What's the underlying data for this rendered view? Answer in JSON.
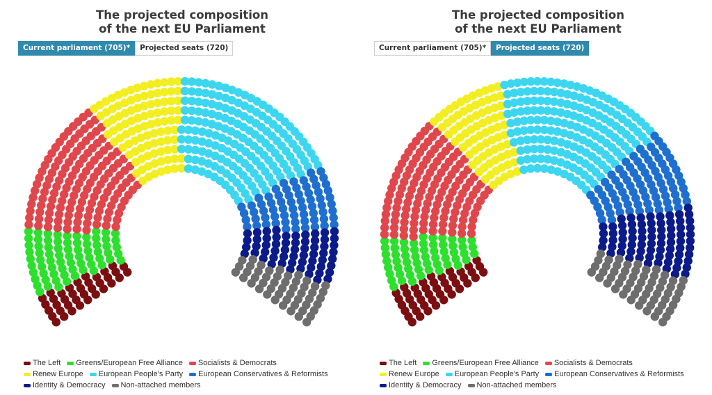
{
  "chart_data": [
    {
      "type": "parliament",
      "title_lines": [
        "The projected composition",
        "of the next EU Parliament"
      ],
      "tabs": [
        {
          "label": "Current parliament (705)*",
          "active": true
        },
        {
          "label": "Projected seats (720)",
          "active": false
        }
      ],
      "series": [
        {
          "name": "The Left",
          "seats": 37,
          "color": "#7b0e10"
        },
        {
          "name": "Greens/European Free Alliance",
          "seats": 71,
          "color": "#2ee02e"
        },
        {
          "name": "Socialists & Democrats",
          "seats": 143,
          "color": "#e0474c"
        },
        {
          "name": "Renew Europe",
          "seats": 101,
          "color": "#f2ee22"
        },
        {
          "name": "European People's Party",
          "seats": 177,
          "color": "#3cd6f0"
        },
        {
          "name": "European Conservatives & Reformists",
          "seats": 67,
          "color": "#1f6fd0"
        },
        {
          "name": "Identity & Democracy",
          "seats": 59,
          "color": "#0c1b8a"
        },
        {
          "name": "Non-attached members",
          "seats": 50,
          "color": "#6e6e6e"
        }
      ]
    },
    {
      "type": "parliament",
      "title_lines": [
        "The projected composition",
        "of the next EU Parliament"
      ],
      "tabs": [
        {
          "label": "Current parliament (705)*",
          "active": false
        },
        {
          "label": "Projected seats (720)",
          "active": true
        }
      ],
      "series": [
        {
          "name": "The Left",
          "seats": 44,
          "color": "#7b0e10"
        },
        {
          "name": "Greens/European Free Alliance",
          "seats": 57,
          "color": "#2ee02e"
        },
        {
          "name": "Socialists & Democrats",
          "seats": 135,
          "color": "#e0474c"
        },
        {
          "name": "Renew Europe",
          "seats": 82,
          "color": "#f2ee22"
        },
        {
          "name": "European People's Party",
          "seats": 183,
          "color": "#3cd6f0"
        },
        {
          "name": "European Conservatives & Reformists",
          "seats": 85,
          "color": "#1f6fd0"
        },
        {
          "name": "Identity & Democracy",
          "seats": 75,
          "color": "#0c1b8a"
        },
        {
          "name": "Non-attached members",
          "seats": 59,
          "color": "#6e6e6e"
        }
      ]
    }
  ]
}
